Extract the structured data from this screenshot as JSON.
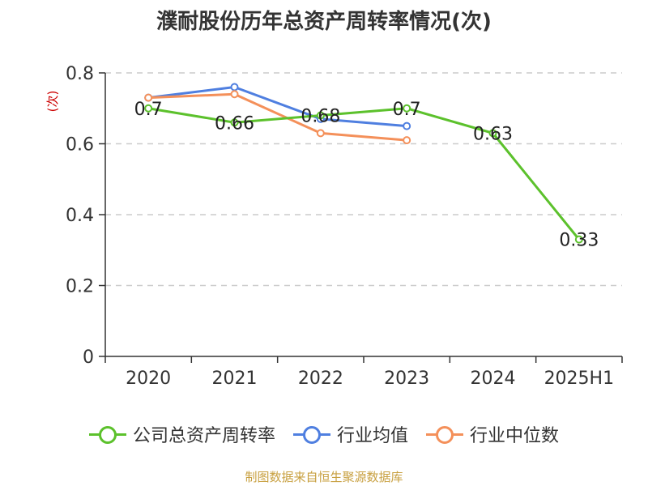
{
  "chart_data": {
    "type": "line",
    "title": "濮耐股份历年总资产周转率情况(次)",
    "ylabel": "(次)",
    "xlabel": "",
    "categories": [
      "2020",
      "2021",
      "2022",
      "2023",
      "2024",
      "2025H1"
    ],
    "ylim": [
      0,
      0.8
    ],
    "yticks": [
      "0",
      "0.2",
      "0.4",
      "0.6",
      "0.8"
    ],
    "grid": true,
    "legend_position": "bottom",
    "series": [
      {
        "name": "公司总资产周转率",
        "color": "#5cc12c",
        "values": [
          0.7,
          0.66,
          0.68,
          0.7,
          0.63,
          0.33
        ],
        "labels": [
          "0.7",
          "0.66",
          "0.68",
          "0.7",
          "0.63",
          "0.33"
        ]
      },
      {
        "name": "行业均值",
        "color": "#4f7fe0",
        "values": [
          0.73,
          0.76,
          0.67,
          0.65,
          null,
          null
        ]
      },
      {
        "name": "行业中位数",
        "color": "#f4905a",
        "values": [
          0.73,
          0.74,
          0.63,
          0.61,
          null,
          null
        ]
      }
    ]
  },
  "source_note": "制图数据来自恒生聚源数据库"
}
